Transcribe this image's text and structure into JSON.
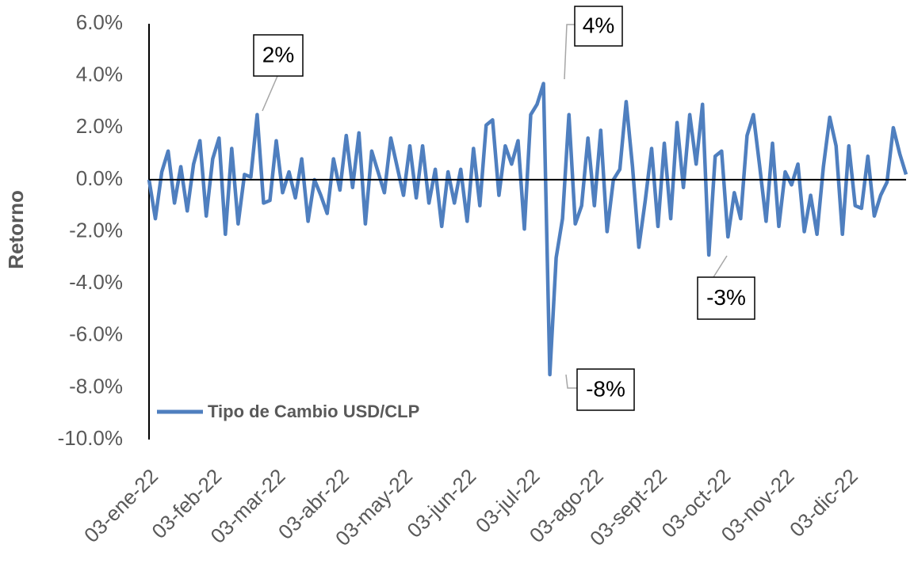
{
  "chart_data": {
    "type": "line",
    "y_label": "Retorno",
    "categories": [
      "03-ene-22",
      null,
      null,
      null,
      null,
      null,
      null,
      null,
      null,
      null,
      "03-feb-22",
      null,
      null,
      null,
      null,
      null,
      null,
      null,
      null,
      null,
      "03-mar-22",
      null,
      null,
      null,
      null,
      null,
      null,
      null,
      null,
      null,
      "03-abr-22",
      null,
      null,
      null,
      null,
      null,
      null,
      null,
      null,
      null,
      "03-may-22",
      null,
      null,
      null,
      null,
      null,
      null,
      null,
      null,
      null,
      "03-jun-22",
      null,
      null,
      null,
      null,
      null,
      null,
      null,
      null,
      null,
      "03-jul-22",
      null,
      null,
      null,
      null,
      null,
      null,
      null,
      null,
      null,
      "03-ago-22",
      null,
      null,
      null,
      null,
      null,
      null,
      null,
      null,
      null,
      "03-sept-22",
      null,
      null,
      null,
      null,
      null,
      null,
      null,
      null,
      null,
      "03-oct-22",
      null,
      null,
      null,
      null,
      null,
      null,
      null,
      null,
      null,
      "03-nov-22",
      null,
      null,
      null,
      null,
      null,
      null,
      null,
      null,
      null,
      "03-dic-22",
      null,
      null,
      null,
      null,
      null,
      null,
      null,
      null,
      null
    ],
    "series": [
      {
        "name": "Tipo de Cambio USD/CLP",
        "color": "#4f7fbf",
        "values": [
          0,
          -1.5,
          0.3,
          1.1,
          -0.9,
          0.5,
          -1.2,
          0.6,
          1.5,
          -1.4,
          0.8,
          1.6,
          -2.1,
          1.2,
          -1.7,
          0.2,
          0.1,
          2.5,
          -0.9,
          -0.8,
          1.5,
          -0.5,
          0.3,
          -0.7,
          0.8,
          -1.6,
          0,
          -0.6,
          -1.3,
          0.8,
          -0.4,
          1.7,
          -0.3,
          1.8,
          -1.7,
          1.1,
          0.3,
          -0.5,
          1.6,
          0.5,
          -0.6,
          1.3,
          -0.7,
          1.3,
          -0.9,
          0.4,
          -1.8,
          0.3,
          -0.9,
          0.4,
          -1.6,
          1.2,
          -1.0,
          2.1,
          2.3,
          -0.6,
          1.3,
          0.6,
          1.5,
          -1.9,
          2.5,
          2.9,
          3.7,
          -7.5,
          -3,
          -1.5,
          2.5,
          -1.7,
          -1,
          1.6,
          -1.0,
          1.9,
          -2.0,
          0,
          0.4,
          3.0,
          0.5,
          -2.6,
          -0.8,
          1.2,
          -1.8,
          1.4,
          -1.5,
          2.2,
          -0.3,
          2.5,
          0.6,
          2.9,
          -2.9,
          0.9,
          1.1,
          -2.2,
          -0.5,
          -1.5,
          1.7,
          2.5,
          0.5,
          -1.6,
          1.4,
          -1.8,
          0.3,
          -0.2,
          0.6,
          -2.0,
          -0.6,
          -2.1,
          0.5,
          2.4,
          1.3,
          -2.1,
          1.3,
          -1.0,
          -1.1,
          0.9,
          -1.4,
          -0.6,
          -0.1,
          2.0,
          1.0,
          0.2
        ]
      }
    ],
    "ylim": [
      -10,
      6
    ],
    "yticks": [
      {
        "value": -10,
        "label": "-10.0%"
      },
      {
        "value": -8,
        "label": "-8.0%"
      },
      {
        "value": -6,
        "label": "-6.0%"
      },
      {
        "value": -4,
        "label": "-4.0%"
      },
      {
        "value": -2,
        "label": "-2.0%"
      },
      {
        "value": 0,
        "label": "0.0%"
      },
      {
        "value": 2,
        "label": "2.0%"
      },
      {
        "value": 4,
        "label": "4.0%"
      },
      {
        "value": 6,
        "label": "6.0%"
      }
    ],
    "annotations": [
      "2%",
      "4%",
      "-8%",
      "-3%"
    ],
    "legend": "lower left"
  }
}
